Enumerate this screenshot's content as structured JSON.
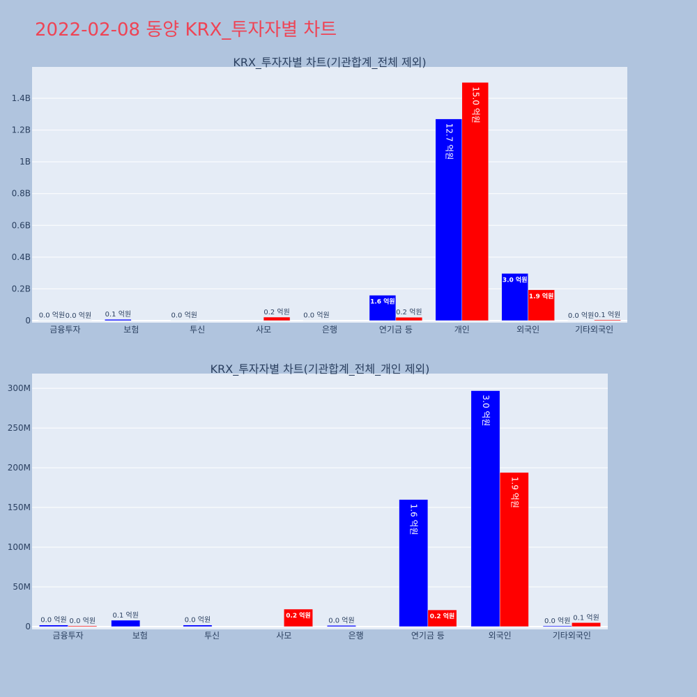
{
  "page": {
    "title": "2022-02-08 동양 KRX_투자자별 차트",
    "background": "#b0c4de",
    "title_color": "#ee4455"
  },
  "colors": {
    "plot_bg": "#e5ecf6",
    "grid": "#ffffff",
    "buy": "#0000ff",
    "sell": "#ff0000",
    "text": "#2a3f5f"
  },
  "chart_data": [
    {
      "type": "bar",
      "title": "KRX_투자자별 차트(기관합계_전체 제외)",
      "categories": [
        "금융투자",
        "보험",
        "투신",
        "사모",
        "은행",
        "연기금 등",
        "개인",
        "외국인",
        "기타외국인"
      ],
      "series": [
        {
          "color": "#0000ff",
          "values": [
            2000000,
            8000000,
            2000000,
            0,
            1500000,
            160000000,
            1270000000,
            297000000,
            1000000
          ],
          "labels": [
            "0.0 억원",
            "0.1 억원",
            "0.0 억원",
            "",
            "0.0 억원",
            "1.6 억원",
            "12.7 억원",
            "3.0 억원",
            "0.0 억원"
          ]
        },
        {
          "color": "#ff0000",
          "values": [
            1000000,
            0,
            0,
            22000000,
            0,
            21000000,
            1500000000,
            194000000,
            5000000
          ],
          "labels": [
            "0.0 억원",
            "",
            "",
            "0.2 억원",
            "",
            "0.2 억원",
            "15.0 억원",
            "1.9 억원",
            "0.1 억원"
          ]
        }
      ],
      "ylim": [
        0,
        1580000000
      ],
      "yticks": [
        0,
        200000000,
        400000000,
        600000000,
        800000000,
        1000000000,
        1200000000,
        1400000000
      ],
      "ytick_labels": [
        "0",
        "0.2B",
        "0.4B",
        "0.6B",
        "0.8B",
        "1B",
        "1.2B",
        "1.4B"
      ],
      "grid": true
    },
    {
      "type": "bar",
      "title": "KRX_투자자별 차트(기관합계_전체_개인 제외)",
      "categories": [
        "금융투자",
        "보험",
        "투신",
        "사모",
        "은행",
        "연기금 등",
        "외국인",
        "기타외국인"
      ],
      "series": [
        {
          "color": "#0000ff",
          "values": [
            2000000,
            8000000,
            2000000,
            0,
            1500000,
            160000000,
            297000000,
            1000000
          ],
          "labels": [
            "0.0 억원",
            "0.1 억원",
            "0.0 억원",
            "",
            "0.0 억원",
            "1.6 억원",
            "3.0 억원",
            "0.0 억원"
          ]
        },
        {
          "color": "#ff0000",
          "values": [
            1000000,
            0,
            0,
            22000000,
            0,
            21000000,
            194000000,
            5000000
          ],
          "labels": [
            "0.0 억원",
            "",
            "",
            "0.2 억원",
            "",
            "0.2 억원",
            "1.9 억원",
            "0.1 억원"
          ]
        }
      ],
      "ylim": [
        0,
        315000000
      ],
      "yticks": [
        0,
        50000000,
        100000000,
        150000000,
        200000000,
        250000000,
        300000000
      ],
      "ytick_labels": [
        "0",
        "50M",
        "100M",
        "150M",
        "200M",
        "250M",
        "300M"
      ],
      "grid": true
    }
  ]
}
